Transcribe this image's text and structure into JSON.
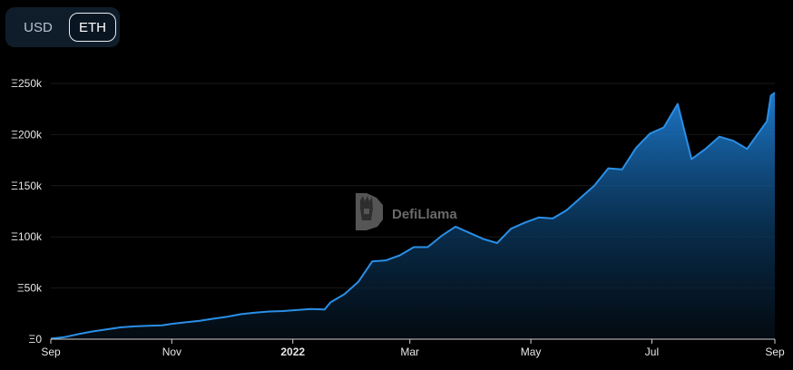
{
  "currency_toggle": {
    "options": [
      "USD",
      "ETH"
    ],
    "selected": "ETH"
  },
  "watermark": "DefiLlama",
  "chart_data": {
    "type": "area",
    "y_ticks": [
      {
        "value": 0,
        "label": "Ξ0"
      },
      {
        "value": 50000,
        "label": "Ξ50k"
      },
      {
        "value": 100000,
        "label": "Ξ100k"
      },
      {
        "value": 150000,
        "label": "Ξ150k"
      },
      {
        "value": 200000,
        "label": "Ξ200k"
      },
      {
        "value": 250000,
        "label": "Ξ250k"
      }
    ],
    "x_ticks": [
      {
        "label": "Sep",
        "date": "2021-09-01",
        "bold": false
      },
      {
        "label": "Nov",
        "date": "2021-11-01",
        "bold": false
      },
      {
        "label": "2022",
        "date": "2022-01-01",
        "bold": true
      },
      {
        "label": "Mar",
        "date": "2022-03-01",
        "bold": false
      },
      {
        "label": "May",
        "date": "2022-05-01",
        "bold": false
      },
      {
        "label": "Jul",
        "date": "2022-07-01",
        "bold": false
      },
      {
        "label": "Sep",
        "date": "2022-09-01",
        "bold": false
      }
    ],
    "ylim": [
      0,
      250000
    ],
    "xlim": [
      "2021-09-01",
      "2022-09-01"
    ],
    "grid": true,
    "series": [
      {
        "color": "#2a8fe6",
        "points": [
          [
            "2021-09-01",
            500
          ],
          [
            "2021-09-08",
            2000
          ],
          [
            "2021-09-15",
            5000
          ],
          [
            "2021-09-22",
            7500
          ],
          [
            "2021-09-29",
            9500
          ],
          [
            "2021-10-06",
            11500
          ],
          [
            "2021-10-13",
            12500
          ],
          [
            "2021-10-20",
            13000
          ],
          [
            "2021-10-27",
            13500
          ],
          [
            "2021-11-01",
            15000
          ],
          [
            "2021-11-08",
            16500
          ],
          [
            "2021-11-15",
            18000
          ],
          [
            "2021-11-22",
            20000
          ],
          [
            "2021-11-29",
            22000
          ],
          [
            "2021-12-06",
            24500
          ],
          [
            "2021-12-13",
            26000
          ],
          [
            "2021-12-20",
            27000
          ],
          [
            "2021-12-27",
            27500
          ],
          [
            "2022-01-03",
            28500
          ],
          [
            "2022-01-10",
            29500
          ],
          [
            "2022-01-17",
            29000
          ],
          [
            "2022-01-20",
            36000
          ],
          [
            "2022-01-27",
            44000
          ],
          [
            "2022-02-03",
            56000
          ],
          [
            "2022-02-10",
            76000
          ],
          [
            "2022-02-17",
            77000
          ],
          [
            "2022-02-24",
            82000
          ],
          [
            "2022-03-03",
            90000
          ],
          [
            "2022-03-10",
            90000
          ],
          [
            "2022-03-17",
            101000
          ],
          [
            "2022-03-24",
            110000
          ],
          [
            "2022-03-31",
            104000
          ],
          [
            "2022-04-07",
            98000
          ],
          [
            "2022-04-14",
            94000
          ],
          [
            "2022-04-21",
            108000
          ],
          [
            "2022-04-28",
            114000
          ],
          [
            "2022-05-05",
            119000
          ],
          [
            "2022-05-12",
            118000
          ],
          [
            "2022-05-19",
            126000
          ],
          [
            "2022-05-26",
            138000
          ],
          [
            "2022-06-02",
            150000
          ],
          [
            "2022-06-09",
            167000
          ],
          [
            "2022-06-16",
            166000
          ],
          [
            "2022-06-23",
            187000
          ],
          [
            "2022-06-30",
            201000
          ],
          [
            "2022-07-07",
            207000
          ],
          [
            "2022-07-14",
            230000
          ],
          [
            "2022-07-21",
            176000
          ],
          [
            "2022-07-28",
            186000
          ],
          [
            "2022-08-04",
            198000
          ],
          [
            "2022-08-11",
            194000
          ],
          [
            "2022-08-18",
            186000
          ],
          [
            "2022-08-25",
            205000
          ],
          [
            "2022-08-28",
            213000
          ],
          [
            "2022-08-30",
            238000
          ],
          [
            "2022-09-01",
            241000
          ]
        ]
      }
    ]
  }
}
